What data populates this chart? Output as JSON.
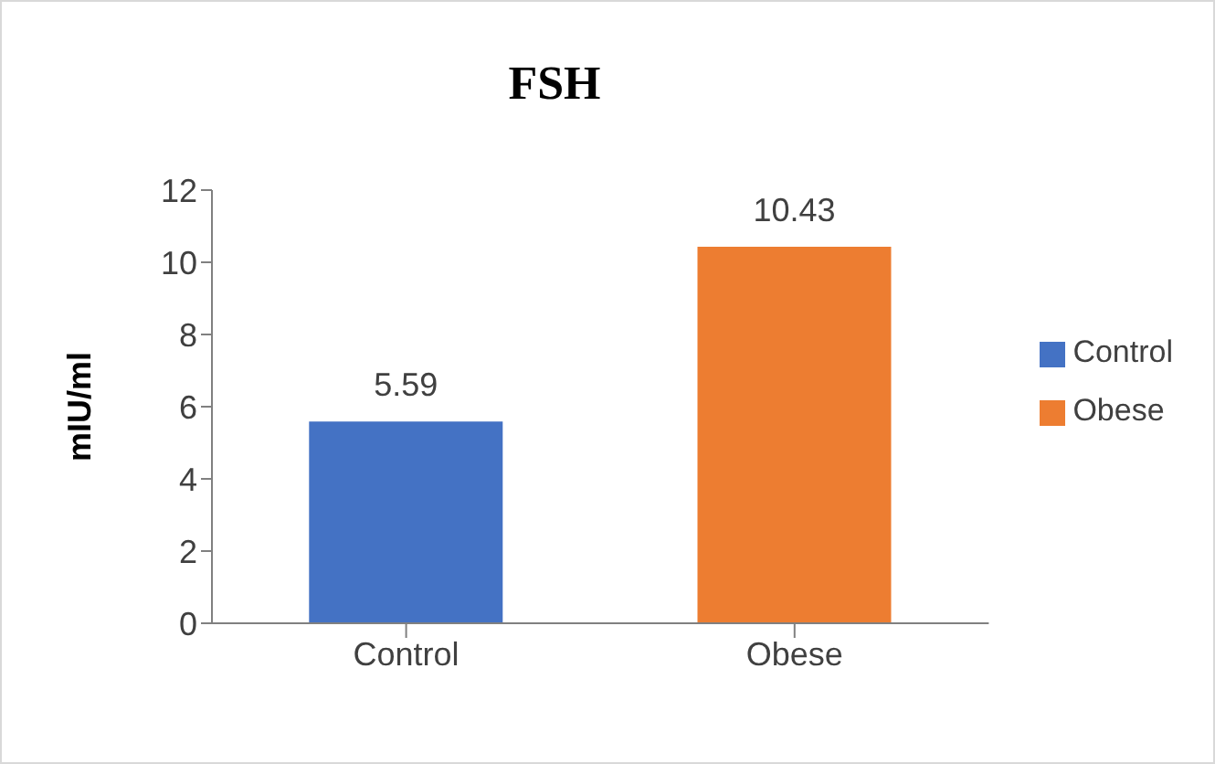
{
  "chart_data": {
    "type": "bar",
    "title": "FSH",
    "ylabel": "mIU/ml",
    "categories": [
      "Control",
      "Obese"
    ],
    "series": [
      {
        "name": "Control",
        "color": "#4472c4",
        "values": [
          5.59,
          null
        ]
      },
      {
        "name": "Obese",
        "color": "#ed7d31",
        "values": [
          null,
          10.43
        ]
      }
    ],
    "ylim": [
      0,
      12
    ],
    "yticks": [
      0,
      2,
      4,
      6,
      8,
      10,
      12
    ],
    "data_labels": true,
    "legend": "right",
    "grid": false
  }
}
